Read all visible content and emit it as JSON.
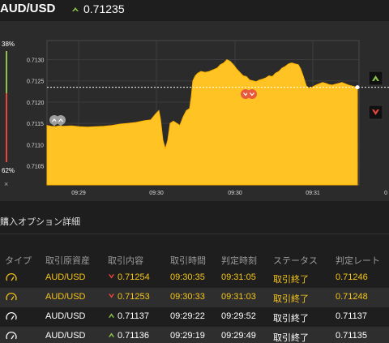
{
  "header": {
    "pair": "AUD/USD",
    "rate": "0.71235",
    "direction_icon": "up-chevron-icon",
    "direction_color": "#8bc34a"
  },
  "chart": {
    "y_ticks": [
      "0.7130",
      "0.7125",
      "0.7120",
      "0.7115",
      "0.7110",
      "0.7105"
    ],
    "x_ticks": [
      "09:29",
      "09:30",
      "09:30",
      "09:31",
      "0"
    ],
    "left_gauge_top": "38%",
    "left_gauge_bottom": "62%",
    "close_label": "×",
    "current_rate": 0.71235,
    "fill_color": "#ffc324",
    "series": [
      [
        0,
        0.71145
      ],
      [
        5,
        0.71143
      ],
      [
        10,
        0.71142
      ],
      [
        15,
        0.71144
      ],
      [
        20,
        0.71143
      ],
      [
        30,
        0.71144
      ],
      [
        40,
        0.71142
      ],
      [
        50,
        0.71141
      ],
      [
        60,
        0.71142
      ],
      [
        70,
        0.71143
      ],
      [
        80,
        0.71145
      ],
      [
        90,
        0.71148
      ],
      [
        100,
        0.7115
      ],
      [
        110,
        0.71152
      ],
      [
        120,
        0.71156
      ],
      [
        128,
        0.71158
      ],
      [
        134,
        0.71172
      ],
      [
        138,
        0.7118
      ],
      [
        140,
        0.7116
      ],
      [
        143,
        0.7111
      ],
      [
        146,
        0.7109
      ],
      [
        149,
        0.7111
      ],
      [
        152,
        0.7115
      ],
      [
        156,
        0.71155
      ],
      [
        160,
        0.7115
      ],
      [
        164,
        0.71145
      ],
      [
        168,
        0.71165
      ],
      [
        172,
        0.7118
      ],
      [
        176,
        0.71185
      ],
      [
        178,
        0.71212
      ],
      [
        180,
        0.7125
      ],
      [
        183,
        0.71262
      ],
      [
        186,
        0.71268
      ],
      [
        190,
        0.71272
      ],
      [
        195,
        0.7127
      ],
      [
        200,
        0.71272
      ],
      [
        205,
        0.71276
      ],
      [
        210,
        0.7128
      ],
      [
        214,
        0.71288
      ],
      [
        218,
        0.71292
      ],
      [
        222,
        0.713
      ],
      [
        226,
        0.71296
      ],
      [
        230,
        0.71288
      ],
      [
        234,
        0.71278
      ],
      [
        238,
        0.7127
      ],
      [
        242,
        0.71262
      ],
      [
        246,
        0.7126
      ],
      [
        250,
        0.71252
      ],
      [
        254,
        0.7125
      ],
      [
        258,
        0.71248
      ],
      [
        262,
        0.71252
      ],
      [
        266,
        0.71254
      ],
      [
        270,
        0.71257
      ],
      [
        274,
        0.71262
      ],
      [
        278,
        0.7126
      ],
      [
        282,
        0.71268
      ],
      [
        286,
        0.71272
      ],
      [
        290,
        0.7128
      ],
      [
        294,
        0.71284
      ],
      [
        298,
        0.7129
      ],
      [
        302,
        0.71292
      ],
      [
        306,
        0.7129
      ],
      [
        310,
        0.71288
      ],
      [
        313,
        0.71278
      ],
      [
        316,
        0.71262
      ],
      [
        320,
        0.71238
      ],
      [
        324,
        0.71232
      ],
      [
        328,
        0.71236
      ],
      [
        332,
        0.7124
      ],
      [
        336,
        0.71243
      ],
      [
        340,
        0.71246
      ],
      [
        344,
        0.71244
      ],
      [
        348,
        0.71241
      ],
      [
        352,
        0.7124
      ],
      [
        356,
        0.71242
      ],
      [
        360,
        0.71244
      ],
      [
        364,
        0.71246
      ],
      [
        368,
        0.71243
      ],
      [
        372,
        0.7124
      ],
      [
        376,
        0.71238
      ],
      [
        380,
        0.71236
      ],
      [
        383,
        0.71235
      ]
    ]
  },
  "section": {
    "title": "購入オプション詳細"
  },
  "table": {
    "headers": [
      "タイプ",
      "取引原資産",
      "取引内容",
      "取引時間",
      "判定時刻",
      "ステータス",
      "判定レート"
    ],
    "rows": [
      {
        "style": "yellow",
        "asset": "AUD/USD",
        "direction": "down",
        "rate": "0.71254",
        "trade_time": "09:30:35",
        "judge_time": "09:31:05",
        "status": "取引終了",
        "judge_rate": "0.71246"
      },
      {
        "style": "yellow",
        "asset": "AUD/USD",
        "direction": "down",
        "rate": "0.71253",
        "trade_time": "09:30:33",
        "judge_time": "09:31:03",
        "status": "取引終了",
        "judge_rate": "0.71248"
      },
      {
        "style": "white",
        "asset": "AUD/USD",
        "direction": "up",
        "rate": "0.71137",
        "trade_time": "09:29:22",
        "judge_time": "09:29:52",
        "status": "取引終了",
        "judge_rate": "0.71137"
      },
      {
        "style": "white",
        "asset": "AUD/USD",
        "direction": "up",
        "rate": "0.71136",
        "trade_time": "09:29:19",
        "judge_time": "09:29:49",
        "status": "取引終了",
        "judge_rate": "0.71135"
      }
    ]
  },
  "colors": {
    "up": "#8bc34a",
    "down": "#e8453c",
    "yellow_text": "#f5c518"
  }
}
